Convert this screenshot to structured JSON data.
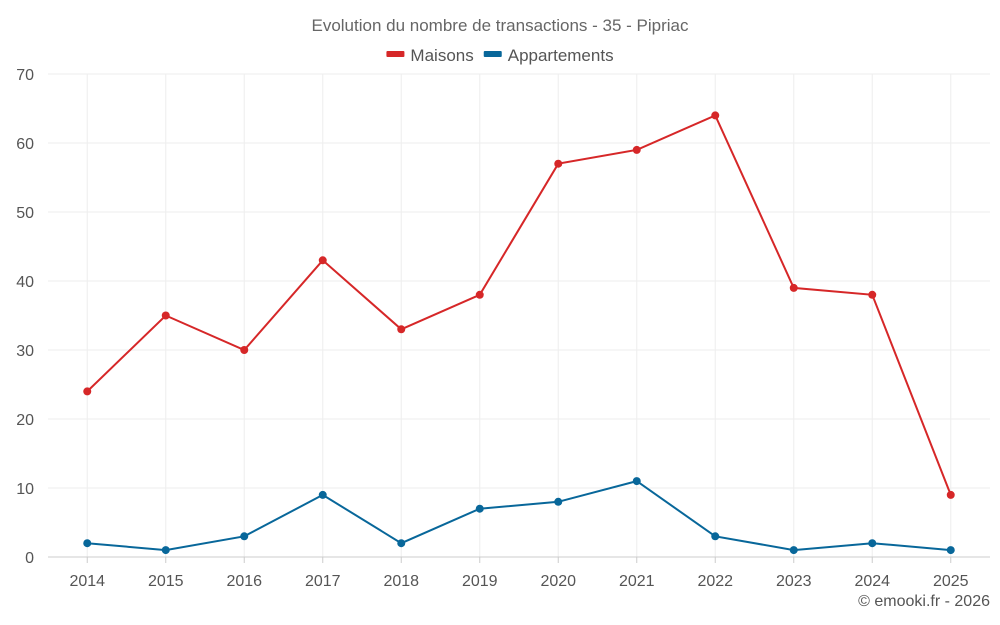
{
  "chart_data": {
    "type": "line",
    "title": "Evolution du nombre de transactions - 35 - Pipriac",
    "xlabel": "",
    "ylabel": "",
    "categories": [
      "2014",
      "2015",
      "2016",
      "2017",
      "2018",
      "2019",
      "2020",
      "2021",
      "2022",
      "2023",
      "2024",
      "2025"
    ],
    "ylim": [
      0,
      70
    ],
    "yticks": [
      0,
      10,
      20,
      30,
      40,
      50,
      60,
      70
    ],
    "grid": true,
    "legend_position": "top-center",
    "series": [
      {
        "name": "Maisons",
        "color": "#d62728",
        "values": [
          24,
          35,
          30,
          43,
          33,
          38,
          57,
          59,
          64,
          39,
          38,
          9
        ]
      },
      {
        "name": "Appartements",
        "color": "#08679a",
        "values": [
          2,
          1,
          3,
          9,
          2,
          7,
          8,
          11,
          3,
          1,
          2,
          1
        ]
      }
    ]
  },
  "footer": {
    "credit": "© emooki.fr - 2026"
  }
}
